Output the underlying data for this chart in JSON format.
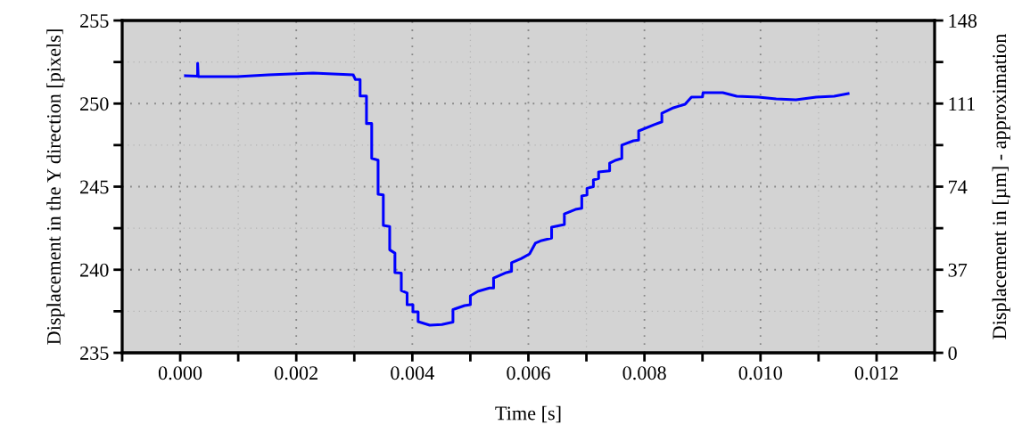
{
  "chart_data": {
    "type": "line",
    "xlabel": "Time [s]",
    "ylabel": "Displacement in the Y direction [pixels]",
    "y2label": "Displacement in [µm] - approximation",
    "xlim": [
      -0.001,
      0.013
    ],
    "xticks": [
      {
        "value": -0.001,
        "label": null
      },
      {
        "value": 0,
        "label": "0.000"
      },
      {
        "value": 0.001,
        "label": null
      },
      {
        "value": 0.002,
        "label": "0.002"
      },
      {
        "value": 0.003,
        "label": null
      },
      {
        "value": 0.004,
        "label": "0.004"
      },
      {
        "value": 0.005,
        "label": null
      },
      {
        "value": 0.006,
        "label": "0.006"
      },
      {
        "value": 0.007,
        "label": null
      },
      {
        "value": 0.008,
        "label": "0.008"
      },
      {
        "value": 0.009,
        "label": null
      },
      {
        "value": 0.01,
        "label": "0.010"
      },
      {
        "value": 0.011,
        "label": null
      },
      {
        "value": 0.012,
        "label": "0.012"
      },
      {
        "value": 0.013,
        "label": null
      }
    ],
    "ylim": [
      235,
      255
    ],
    "yticks": [
      235,
      {
        "value": 237.5,
        "label": null
      },
      240,
      {
        "value": 242.5,
        "label": null
      },
      245,
      {
        "value": 247.5,
        "label": null
      },
      250,
      {
        "value": 252.5,
        "label": null
      },
      255
    ],
    "y2lim": [
      0,
      148
    ],
    "y2ticks": [
      0,
      {
        "value": 18.5,
        "label": null
      },
      37,
      {
        "value": 55.5,
        "label": null
      },
      74,
      {
        "value": 92.5,
        "label": null
      },
      111,
      {
        "value": 129.5,
        "label": null
      },
      148
    ],
    "grid": true,
    "marker": "none",
    "line_style": "solid",
    "series": [
      {
        "color": "#0000ff",
        "x": [
          9e-05,
          0.0003,
          0.0003,
          0.00031,
          0.00098,
          0.00152,
          0.00229,
          0.00298,
          0.00302,
          0.0031,
          0.0031,
          0.00321,
          0.00321,
          0.0033,
          0.0033,
          0.00341,
          0.00341,
          0.0035,
          0.0035,
          0.00361,
          0.00361,
          0.0037,
          0.0037,
          0.00381,
          0.00381,
          0.00391,
          0.00391,
          0.00401,
          0.00401,
          0.0041,
          0.0041,
          0.0043,
          0.00451,
          0.0047,
          0.0047,
          0.0049,
          0.005,
          0.005,
          0.00513,
          0.00533,
          0.0054,
          0.0054,
          0.00562,
          0.00571,
          0.00571,
          0.00588,
          0.00602,
          0.00612,
          0.00623,
          0.0064,
          0.0064,
          0.00662,
          0.00662,
          0.00681,
          0.00692,
          0.00692,
          0.00701,
          0.00701,
          0.00712,
          0.00712,
          0.00721,
          0.00721,
          0.0074,
          0.0074,
          0.00751,
          0.00761,
          0.00761,
          0.00781,
          0.0079,
          0.0079,
          0.00817,
          0.0083,
          0.0083,
          0.0085,
          0.0087,
          0.00881,
          0.009,
          0.00901,
          0.00935,
          0.00959,
          0.00996,
          0.01027,
          0.01061,
          0.01096,
          0.01127,
          0.01151
        ],
        "values": [
          251.68,
          251.65,
          252.43,
          251.62,
          251.62,
          251.73,
          251.84,
          251.73,
          251.45,
          251.45,
          250.46,
          250.46,
          248.8,
          248.8,
          246.7,
          246.6,
          244.55,
          244.5,
          242.67,
          242.6,
          241.2,
          241.0,
          239.83,
          239.8,
          238.75,
          238.6,
          237.9,
          237.9,
          237.47,
          237.47,
          236.88,
          236.66,
          236.7,
          236.85,
          237.6,
          237.84,
          237.9,
          238.43,
          238.7,
          238.9,
          238.9,
          239.5,
          239.83,
          239.9,
          240.42,
          240.68,
          240.95,
          241.6,
          241.76,
          241.9,
          242.56,
          242.72,
          243.36,
          243.63,
          243.7,
          244.44,
          244.5,
          244.9,
          245.0,
          245.4,
          245.5,
          245.88,
          245.95,
          246.42,
          246.6,
          246.7,
          247.5,
          247.76,
          247.8,
          248.35,
          248.73,
          248.9,
          249.42,
          249.75,
          249.96,
          250.39,
          250.4,
          250.66,
          250.66,
          250.44,
          250.39,
          250.28,
          250.23,
          250.39,
          250.44,
          250.6
        ]
      }
    ]
  }
}
